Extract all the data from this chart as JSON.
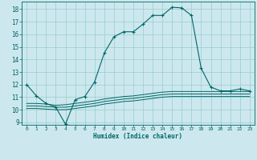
{
  "xlabel": "Humidex (Indice chaleur)",
  "bg_color": "#cce8ee",
  "grid_color": "#99cccc",
  "line_color": "#006666",
  "xlim": [
    -0.5,
    23.5
  ],
  "ylim": [
    8.8,
    18.6
  ],
  "yticks": [
    9,
    10,
    11,
    12,
    13,
    14,
    15,
    16,
    17,
    18
  ],
  "xticks": [
    0,
    1,
    2,
    3,
    4,
    5,
    6,
    7,
    8,
    9,
    10,
    11,
    12,
    13,
    14,
    15,
    16,
    17,
    18,
    19,
    20,
    21,
    22,
    23
  ],
  "main_series": {
    "x": [
      0,
      1,
      2,
      3,
      4,
      5,
      6,
      7,
      8,
      9,
      10,
      11,
      12,
      13,
      14,
      15,
      16,
      17,
      18,
      19,
      20,
      21,
      22,
      23
    ],
    "y": [
      12.0,
      11.1,
      10.5,
      10.2,
      8.85,
      10.8,
      11.05,
      12.2,
      14.5,
      15.8,
      16.2,
      16.2,
      16.8,
      17.5,
      17.5,
      18.15,
      18.1,
      17.5,
      13.3,
      11.8,
      11.5,
      11.5,
      11.65,
      11.5
    ]
  },
  "flat_series": [
    {
      "x": [
        0,
        1,
        2,
        3,
        4,
        5,
        6,
        7,
        8,
        9,
        10,
        11,
        12,
        13,
        14,
        15,
        16,
        17,
        18,
        19,
        20,
        21,
        22,
        23
      ],
      "y": [
        10.5,
        10.5,
        10.45,
        10.35,
        10.4,
        10.5,
        10.6,
        10.7,
        10.85,
        10.95,
        11.05,
        11.1,
        11.2,
        11.3,
        11.4,
        11.45,
        11.45,
        11.45,
        11.45,
        11.45,
        11.45,
        11.45,
        11.45,
        11.45
      ]
    },
    {
      "x": [
        0,
        1,
        2,
        3,
        4,
        5,
        6,
        7,
        8,
        9,
        10,
        11,
        12,
        13,
        14,
        15,
        16,
        17,
        18,
        19,
        20,
        21,
        22,
        23
      ],
      "y": [
        10.3,
        10.3,
        10.25,
        10.2,
        10.2,
        10.3,
        10.4,
        10.5,
        10.65,
        10.75,
        10.85,
        10.9,
        11.0,
        11.1,
        11.2,
        11.25,
        11.25,
        11.25,
        11.25,
        11.25,
        11.25,
        11.25,
        11.25,
        11.25
      ]
    },
    {
      "x": [
        0,
        1,
        2,
        3,
        4,
        5,
        6,
        7,
        8,
        9,
        10,
        11,
        12,
        13,
        14,
        15,
        16,
        17,
        18,
        19,
        20,
        21,
        22,
        23
      ],
      "y": [
        10.1,
        10.1,
        10.05,
        10.0,
        10.0,
        10.1,
        10.2,
        10.3,
        10.45,
        10.55,
        10.65,
        10.7,
        10.8,
        10.9,
        11.0,
        11.05,
        11.05,
        11.05,
        11.05,
        11.05,
        11.05,
        11.05,
        11.05,
        11.05
      ]
    }
  ]
}
